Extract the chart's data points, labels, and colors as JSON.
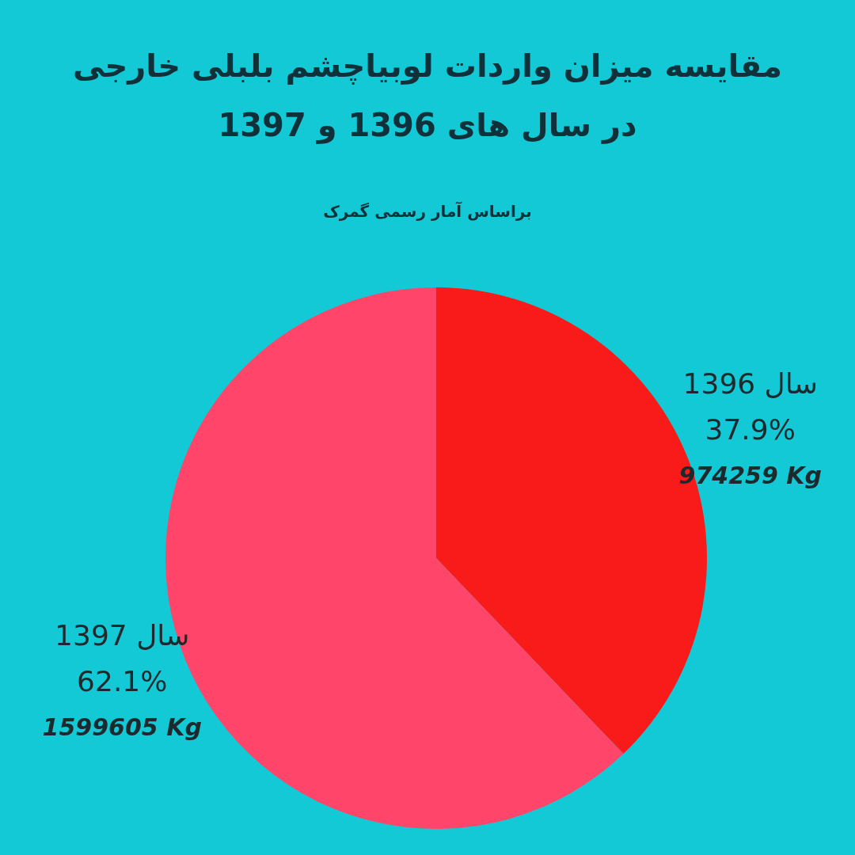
{
  "chart_data": {
    "type": "pie",
    "title": [
      "مقایسه میزان واردات لوبیاچشم بلبلی خارجی",
      "در سال های 1396 و 1397"
    ],
    "subtitle": "براساس آمار رسمی گمرک",
    "categories": [
      "سال 1396",
      "سال 1397"
    ],
    "values": [
      974259,
      1599605
    ],
    "colors": [
      "#f91a1a",
      "#ff4569"
    ],
    "value_labels": [
      "974259 Kg",
      "1599605 Kg"
    ],
    "annotations": [
      "37.9%",
      "62.1%"
    ]
  }
}
